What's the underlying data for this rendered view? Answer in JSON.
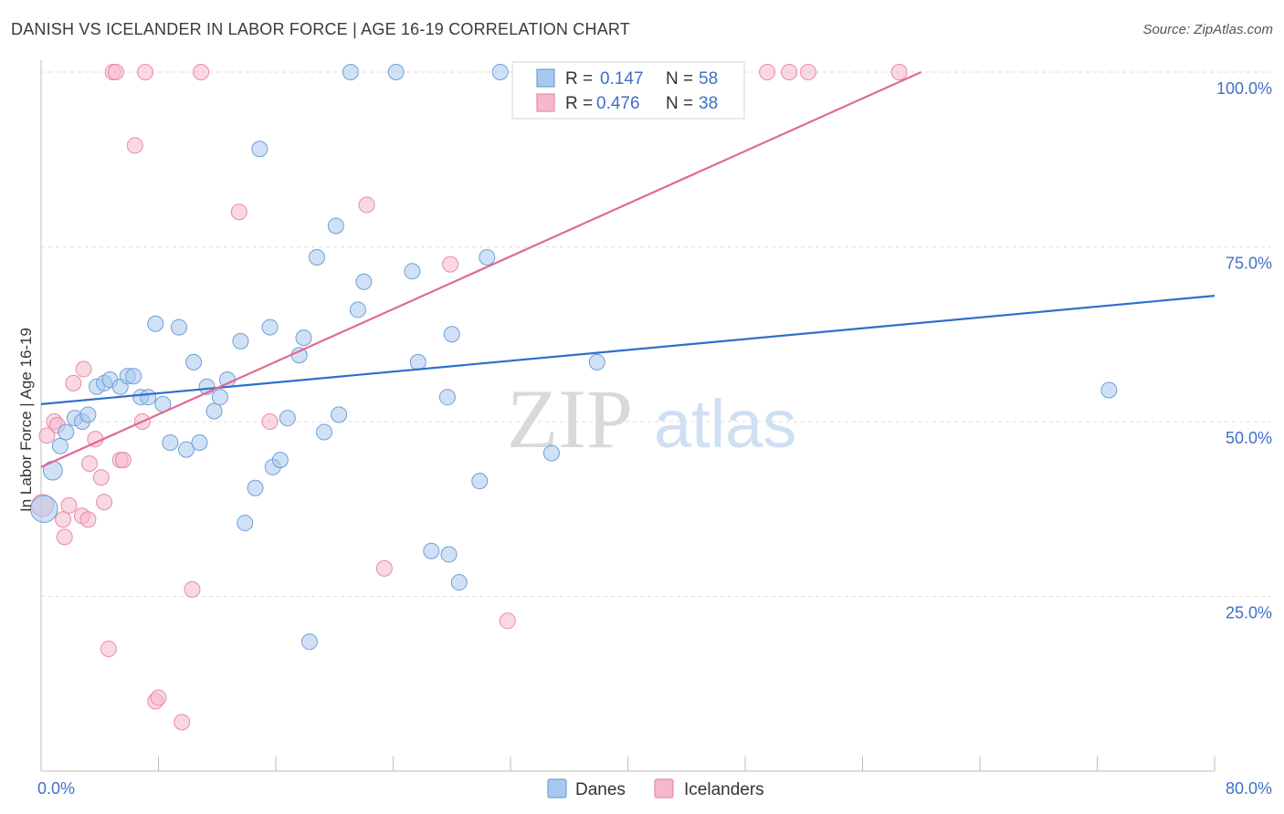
{
  "header": {
    "title": "DANISH VS ICELANDER IN LABOR FORCE | AGE 16-19 CORRELATION CHART",
    "source": "Source: ZipAtlas.com"
  },
  "watermark": {
    "zip": "ZIP",
    "atlas": "atlas"
  },
  "legend_top": {
    "rows": [
      {
        "r_label": "R = ",
        "r_value": "0.147",
        "n_label": "N = ",
        "n_value": "58"
      },
      {
        "r_label": "R = ",
        "r_value": "0.476",
        "n_label": "N = ",
        "n_value": "38"
      }
    ]
  },
  "legend_bottom": {
    "items": [
      "Danes",
      "Icelanders"
    ]
  },
  "colors": {
    "danes_fill": "#a9c8ef",
    "danes_stroke": "#6f9fd8",
    "danes_line": "#2f6fc9",
    "iceland_fill": "#f6b8ca",
    "iceland_stroke": "#e98aa6",
    "iceland_line": "#e06a93",
    "axis_label": "#3f6fc6",
    "grid": "#dddddd"
  },
  "chart_data": {
    "type": "scatter",
    "title": "DANISH VS ICELANDER IN LABOR FORCE | AGE 16-19 CORRELATION CHART",
    "xlabel": "",
    "ylabel": "In Labor Force | Age 16-19",
    "xlim": [
      0,
      80
    ],
    "ylim": [
      0,
      100
    ],
    "x_tick_labels": [
      {
        "value": 0,
        "label": "0.0%"
      },
      {
        "value": 80,
        "label": "80.0%"
      }
    ],
    "y_tick_labels": [
      {
        "value": 100,
        "label": "100.0%"
      },
      {
        "value": 75,
        "label": "75.0%"
      },
      {
        "value": 50,
        "label": "50.0%"
      },
      {
        "value": 25,
        "label": "25.0%"
      }
    ],
    "grid": true,
    "legend_position": "top-center",
    "series": [
      {
        "name": "Danes",
        "r": 0.147,
        "n": 58,
        "trend": [
          [
            0,
            52.5
          ],
          [
            80,
            68.0
          ]
        ],
        "points": [
          [
            0.2,
            37.5,
            3
          ],
          [
            0.8,
            43.0,
            1.5
          ],
          [
            1.3,
            46.5,
            1
          ],
          [
            1.7,
            48.5,
            1
          ],
          [
            2.3,
            50.5,
            1
          ],
          [
            2.8,
            50.0,
            1
          ],
          [
            3.2,
            51.0,
            1
          ],
          [
            3.8,
            55.0,
            1
          ],
          [
            4.3,
            55.5,
            1
          ],
          [
            4.7,
            56.0,
            1
          ],
          [
            5.4,
            55.0,
            1
          ],
          [
            5.9,
            56.5,
            1
          ],
          [
            6.3,
            56.5,
            1
          ],
          [
            6.8,
            53.5,
            1
          ],
          [
            7.3,
            53.5,
            1
          ],
          [
            7.8,
            64.0,
            1
          ],
          [
            8.3,
            52.5,
            1
          ],
          [
            8.8,
            47.0,
            1
          ],
          [
            9.4,
            63.5,
            1
          ],
          [
            9.9,
            46.0,
            1
          ],
          [
            10.4,
            58.5,
            1
          ],
          [
            10.8,
            47.0,
            1
          ],
          [
            11.3,
            55.0,
            1
          ],
          [
            11.8,
            51.5,
            1
          ],
          [
            12.2,
            53.5,
            1
          ],
          [
            12.7,
            56.0,
            1
          ],
          [
            13.6,
            61.5,
            1
          ],
          [
            13.9,
            35.5,
            1
          ],
          [
            14.6,
            40.5,
            1
          ],
          [
            14.9,
            89.0,
            1
          ],
          [
            15.6,
            63.5,
            1
          ],
          [
            15.8,
            43.5,
            1
          ],
          [
            16.3,
            44.5,
            1
          ],
          [
            16.8,
            50.5,
            1
          ],
          [
            17.6,
            59.5,
            1
          ],
          [
            17.9,
            62.0,
            1
          ],
          [
            18.3,
            18.5,
            1
          ],
          [
            18.8,
            73.5,
            1
          ],
          [
            19.3,
            48.5,
            1
          ],
          [
            20.1,
            78.0,
            1
          ],
          [
            20.3,
            51.0,
            1
          ],
          [
            21.1,
            100.0,
            1
          ],
          [
            21.6,
            66.0,
            1
          ],
          [
            22.0,
            70.0,
            1
          ],
          [
            24.2,
            100.0,
            1
          ],
          [
            25.3,
            71.5,
            1
          ],
          [
            25.7,
            58.5,
            1
          ],
          [
            26.6,
            31.5,
            1
          ],
          [
            27.7,
            53.5,
            1
          ],
          [
            27.8,
            31.0,
            1
          ],
          [
            28.0,
            62.5,
            1
          ],
          [
            28.5,
            27.0,
            1
          ],
          [
            29.9,
            41.5,
            1
          ],
          [
            30.4,
            73.5,
            1
          ],
          [
            31.3,
            100.0,
            1
          ],
          [
            34.8,
            45.5,
            1
          ],
          [
            37.9,
            58.5,
            1
          ],
          [
            72.8,
            54.5,
            1
          ]
        ]
      },
      {
        "name": "Icelanders",
        "r": 0.476,
        "n": 38,
        "trend": [
          [
            0,
            43.5
          ],
          [
            60,
            100.0
          ]
        ],
        "points": [
          [
            0.1,
            38.0,
            2
          ],
          [
            0.4,
            48.0,
            1
          ],
          [
            0.9,
            50.0,
            1
          ],
          [
            1.1,
            49.5,
            1
          ],
          [
            1.5,
            36.0,
            1
          ],
          [
            1.6,
            33.5,
            1
          ],
          [
            1.9,
            38.0,
            1
          ],
          [
            2.2,
            55.5,
            1
          ],
          [
            2.8,
            36.5,
            1
          ],
          [
            2.9,
            57.5,
            1
          ],
          [
            3.2,
            36.0,
            1
          ],
          [
            3.3,
            44.0,
            1
          ],
          [
            3.7,
            47.5,
            1
          ],
          [
            4.1,
            42.0,
            1
          ],
          [
            4.3,
            38.5,
            1
          ],
          [
            4.6,
            17.5,
            1
          ],
          [
            4.9,
            100.0,
            1
          ],
          [
            5.1,
            100.0,
            1
          ],
          [
            5.4,
            44.5,
            1
          ],
          [
            5.6,
            44.5,
            1
          ],
          [
            6.4,
            89.5,
            1
          ],
          [
            6.9,
            50.0,
            1
          ],
          [
            7.1,
            100.0,
            1
          ],
          [
            7.8,
            10.0,
            1
          ],
          [
            8.0,
            10.5,
            1
          ],
          [
            9.6,
            7.0,
            1
          ],
          [
            10.3,
            26.0,
            1
          ],
          [
            10.9,
            100.0,
            1
          ],
          [
            13.5,
            80.0,
            1
          ],
          [
            15.6,
            50.0,
            1
          ],
          [
            22.2,
            81.0,
            1
          ],
          [
            23.4,
            29.0,
            1
          ],
          [
            27.9,
            72.5,
            1
          ],
          [
            31.8,
            21.5,
            1
          ],
          [
            49.5,
            100.0,
            1
          ],
          [
            51.0,
            100.0,
            1
          ],
          [
            52.3,
            100.0,
            1
          ],
          [
            58.5,
            100.0,
            1
          ]
        ]
      }
    ]
  }
}
